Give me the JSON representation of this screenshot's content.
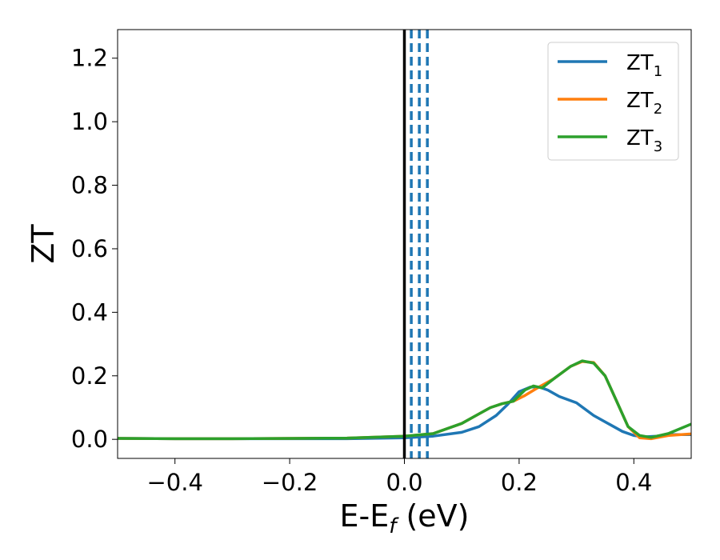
{
  "chart_data": {
    "type": "line",
    "xlabel_main": "E-E",
    "xlabel_sub": "f",
    "xlabel_unit": " (eV)",
    "ylabel": "ZT",
    "xlim": [
      -0.5,
      0.5
    ],
    "ylim": [
      -0.06,
      1.29
    ],
    "xticks": [
      -0.4,
      -0.2,
      0.0,
      0.2,
      0.4
    ],
    "xtick_labels": [
      "−0.4",
      "−0.2",
      "0.0",
      "0.2",
      "0.4"
    ],
    "yticks": [
      0.0,
      0.2,
      0.4,
      0.6,
      0.8,
      1.0,
      1.2
    ],
    "ytick_labels": [
      "0.0",
      "0.2",
      "0.4",
      "0.6",
      "0.8",
      "1.0",
      "1.2"
    ],
    "grid": false,
    "legend_position": "top-right",
    "vlines": [
      {
        "x": 0.0,
        "style": "solid",
        "color": "#000000"
      },
      {
        "x": 0.012,
        "style": "dashed",
        "color": "#1f77b4"
      },
      {
        "x": 0.026,
        "style": "dashed",
        "color": "#1f77b4"
      },
      {
        "x": 0.04,
        "style": "dashed",
        "color": "#1f77b4"
      }
    ],
    "series": [
      {
        "name_main": "ZT",
        "name_sub": "1",
        "color": "#1f77b4",
        "x": [
          -0.5,
          -0.4,
          -0.3,
          -0.2,
          -0.1,
          0.0,
          0.05,
          0.1,
          0.13,
          0.16,
          0.18,
          0.2,
          0.22,
          0.235,
          0.25,
          0.27,
          0.3,
          0.33,
          0.36,
          0.38,
          0.4,
          0.42,
          0.44,
          0.46,
          0.5
        ],
        "y": [
          0.003,
          0.002,
          0.002,
          0.002,
          0.002,
          0.005,
          0.01,
          0.022,
          0.04,
          0.075,
          0.11,
          0.15,
          0.165,
          0.165,
          0.155,
          0.135,
          0.115,
          0.075,
          0.045,
          0.025,
          0.012,
          0.008,
          0.01,
          0.015,
          0.015
        ]
      },
      {
        "name_main": "ZT",
        "name_sub": "2",
        "color": "#ff7f0e",
        "x": [
          -0.5,
          -0.4,
          -0.3,
          -0.2,
          -0.1,
          0.0,
          0.05,
          0.1,
          0.13,
          0.15,
          0.17,
          0.19,
          0.21,
          0.23,
          0.26,
          0.29,
          0.31,
          0.33,
          0.35,
          0.37,
          0.39,
          0.41,
          0.43,
          0.46,
          0.5
        ],
        "y": [
          0.003,
          0.002,
          0.002,
          0.003,
          0.004,
          0.01,
          0.018,
          0.05,
          0.08,
          0.1,
          0.112,
          0.12,
          0.138,
          0.16,
          0.19,
          0.23,
          0.245,
          0.242,
          0.2,
          0.12,
          0.04,
          0.005,
          0.002,
          0.012,
          0.017
        ]
      },
      {
        "name_main": "ZT",
        "name_sub": "3",
        "color": "#2ca02c",
        "x": [
          -0.5,
          -0.4,
          -0.3,
          -0.2,
          -0.1,
          0.0,
          0.05,
          0.1,
          0.13,
          0.15,
          0.17,
          0.19,
          0.21,
          0.225,
          0.24,
          0.26,
          0.29,
          0.31,
          0.33,
          0.35,
          0.37,
          0.39,
          0.41,
          0.43,
          0.46,
          0.5
        ],
        "y": [
          0.003,
          0.002,
          0.002,
          0.003,
          0.004,
          0.01,
          0.018,
          0.05,
          0.08,
          0.1,
          0.112,
          0.12,
          0.155,
          0.168,
          0.162,
          0.19,
          0.23,
          0.247,
          0.24,
          0.2,
          0.12,
          0.04,
          0.012,
          0.006,
          0.018,
          0.048
        ]
      }
    ]
  }
}
